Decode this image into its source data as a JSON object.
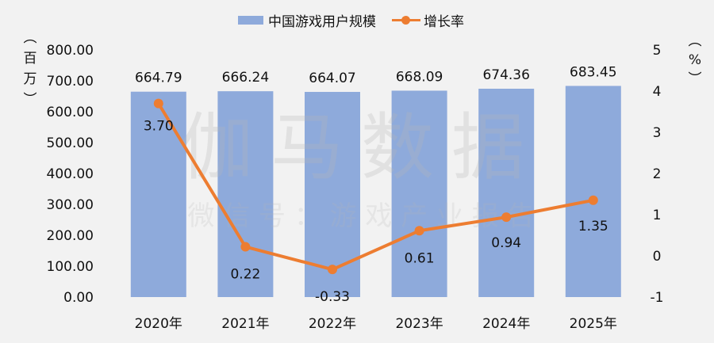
{
  "legend": {
    "bar_label": "中国游戏用户规模",
    "line_label": "增长率"
  },
  "units": {
    "left": [
      "︵",
      "百",
      "万",
      "︶"
    ],
    "right": [
      "︵",
      "%",
      "︶"
    ]
  },
  "watermark": {
    "main": "伽马数据",
    "sub": "微 信 号 ： 游 戏 产 业 报 告"
  },
  "colors": {
    "bar": "#8eaadb",
    "line": "#ed7d31",
    "watermark": "#b7b7b7",
    "background": "#f2f2f2"
  },
  "chart_data": {
    "type": "bar+line",
    "title": "",
    "categories": [
      "2020年",
      "2021年",
      "2022年",
      "2023年",
      "2024年",
      "2025年"
    ],
    "series": [
      {
        "name": "中国游戏用户规模",
        "type": "bar",
        "axis": "left",
        "values": [
          664.79,
          666.24,
          664.07,
          668.09,
          674.36,
          683.45
        ],
        "labels": [
          "664.79",
          "666.24",
          "664.07",
          "668.09",
          "674.36",
          "683.45"
        ]
      },
      {
        "name": "增长率",
        "type": "line",
        "axis": "right",
        "values": [
          3.7,
          0.22,
          -0.33,
          0.61,
          0.94,
          1.35
        ],
        "labels": [
          "3.70",
          "0.22",
          "-0.33",
          "0.61",
          "0.94",
          "1.35"
        ]
      }
    ],
    "ylabel_left": "（百万）",
    "ylabel_right": "（%）",
    "ylim_left": [
      0,
      800
    ],
    "ylim_right": [
      -1,
      5
    ],
    "yticks_left": [
      "0.00",
      "100.00",
      "200.00",
      "300.00",
      "400.00",
      "500.00",
      "600.00",
      "700.00",
      "800.00"
    ],
    "yticks_right": [
      "-1",
      "0",
      "1",
      "2",
      "3",
      "4",
      "5"
    ],
    "grid": false,
    "legend_position": "top"
  }
}
